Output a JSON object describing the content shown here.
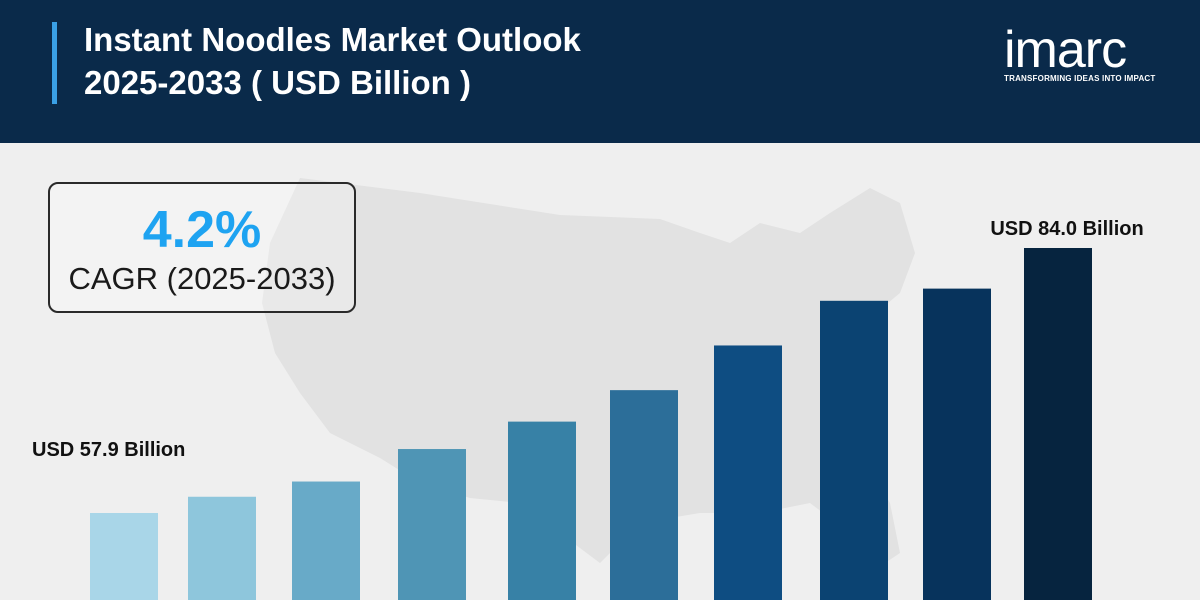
{
  "header": {
    "title_line1": "Instant Noodles Market Outlook",
    "title_line2": "2025-2033 ( USD Billion )"
  },
  "brand": {
    "name": "imarc",
    "tagline": "TRANSFORMING IDEAS INTO IMPACT"
  },
  "cagr": {
    "value": "4.2%",
    "label": "CAGR (2025-2033)"
  },
  "colors": {
    "header_bg": "#0a2a4a",
    "accent": "#3aa0e6",
    "cagr_value": "#1ea3f1"
  },
  "chart_data": {
    "type": "bar",
    "categories": [
      "",
      "",
      "",
      "",
      "",
      "",
      "",
      "",
      "",
      ""
    ],
    "values": [
      57.9,
      59.5,
      61.0,
      64.2,
      66.9,
      70.0,
      74.4,
      78.8,
      80.0,
      84.0
    ],
    "colors": [
      "#a9d6e8",
      "#8ec6dc",
      "#68aac8",
      "#4f95b5",
      "#3781a6",
      "#2c6e99",
      "#0e4d82",
      "#0b4372",
      "#07335c",
      "#06243f"
    ],
    "data_labels": [
      {
        "index": 0,
        "text": "USD 57.9 Billion"
      },
      {
        "index": 9,
        "text": "USD 84.0 Billion"
      }
    ],
    "grid": false,
    "legend": "none"
  }
}
